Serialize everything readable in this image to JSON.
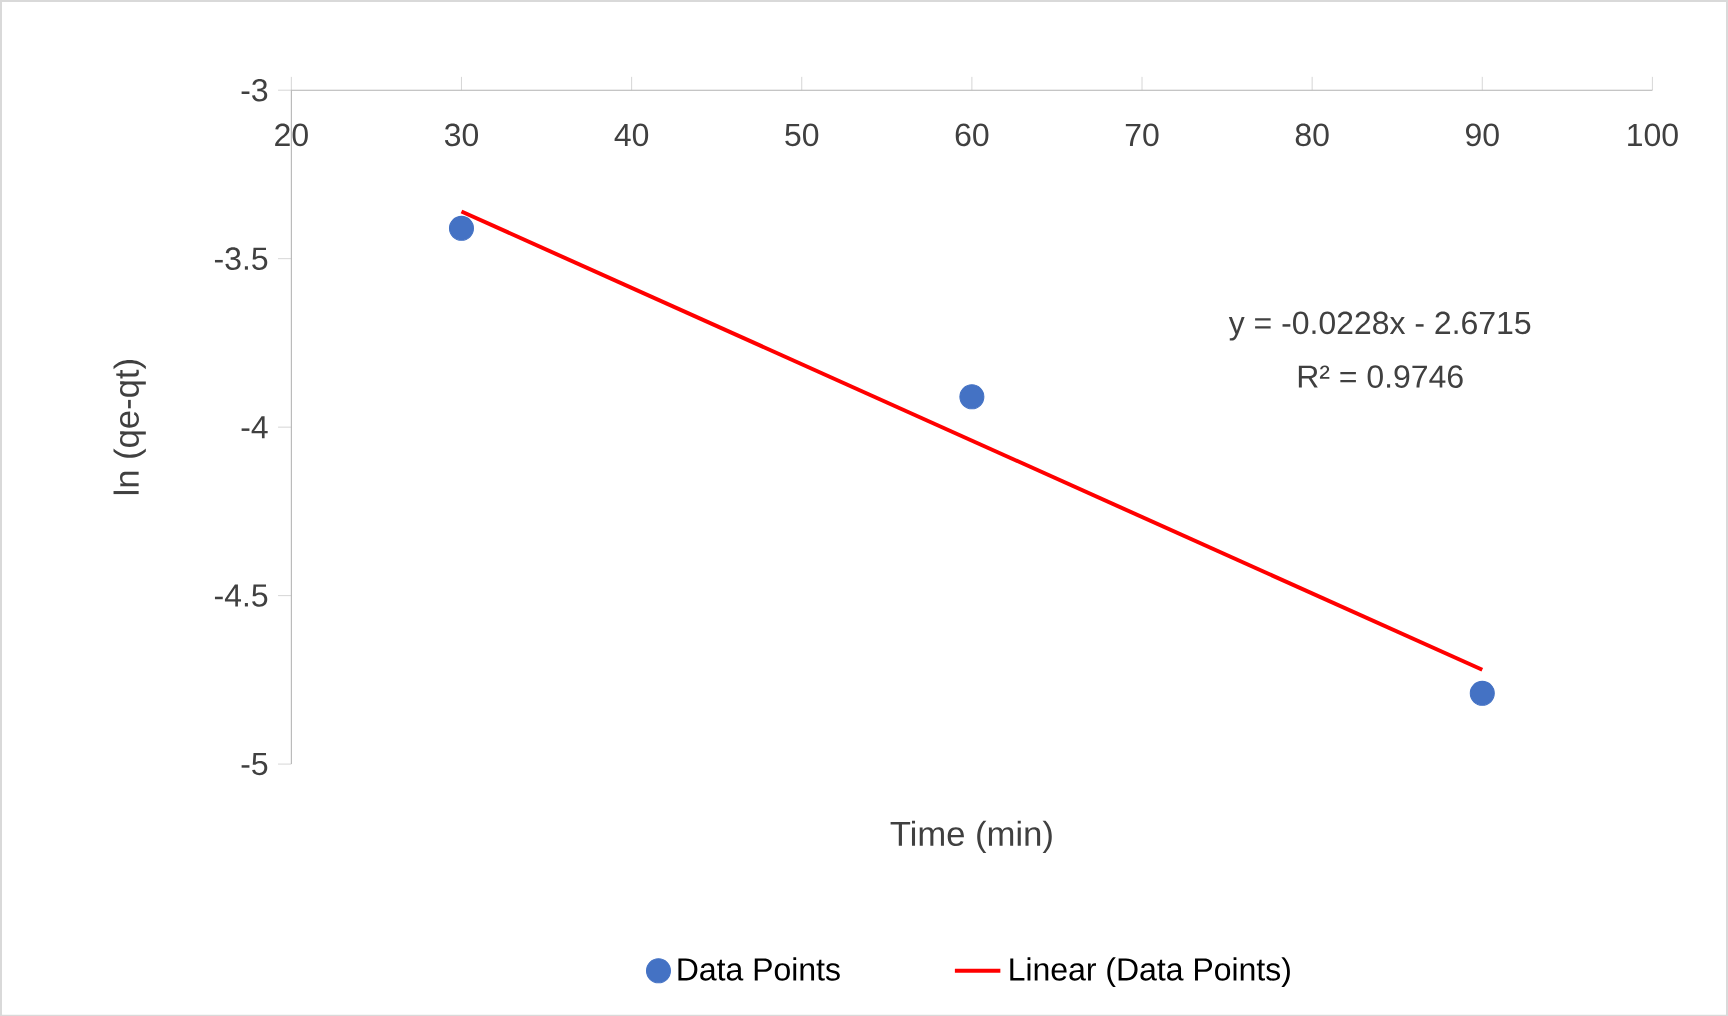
{
  "chart_data": {
    "type": "scatter",
    "xlabel": "Time (min)",
    "ylabel": "ln (qe-qt)",
    "xlim": [
      20,
      100
    ],
    "ylim": [
      -5,
      -3
    ],
    "xticks": [
      20,
      30,
      40,
      50,
      60,
      70,
      80,
      90,
      100
    ],
    "yticks": [
      -5,
      -4.5,
      -4,
      -3.5,
      -3
    ],
    "legend": "bottom",
    "grid": false,
    "annotations": [
      "y = -0.0228x - 2.6715",
      "R² = 0.9746"
    ],
    "series": [
      {
        "name": "Data Points",
        "marker": "circle",
        "color": "#4472c4",
        "x": [
          30,
          60,
          90
        ],
        "values": [
          -3.41,
          -3.91,
          -4.79
        ]
      },
      {
        "type": "line",
        "name": "Linear (Data Points)",
        "marker": "none",
        "color": "#ff0000",
        "x": [
          30,
          90
        ],
        "values": [
          -3.36,
          -4.72
        ]
      }
    ]
  }
}
